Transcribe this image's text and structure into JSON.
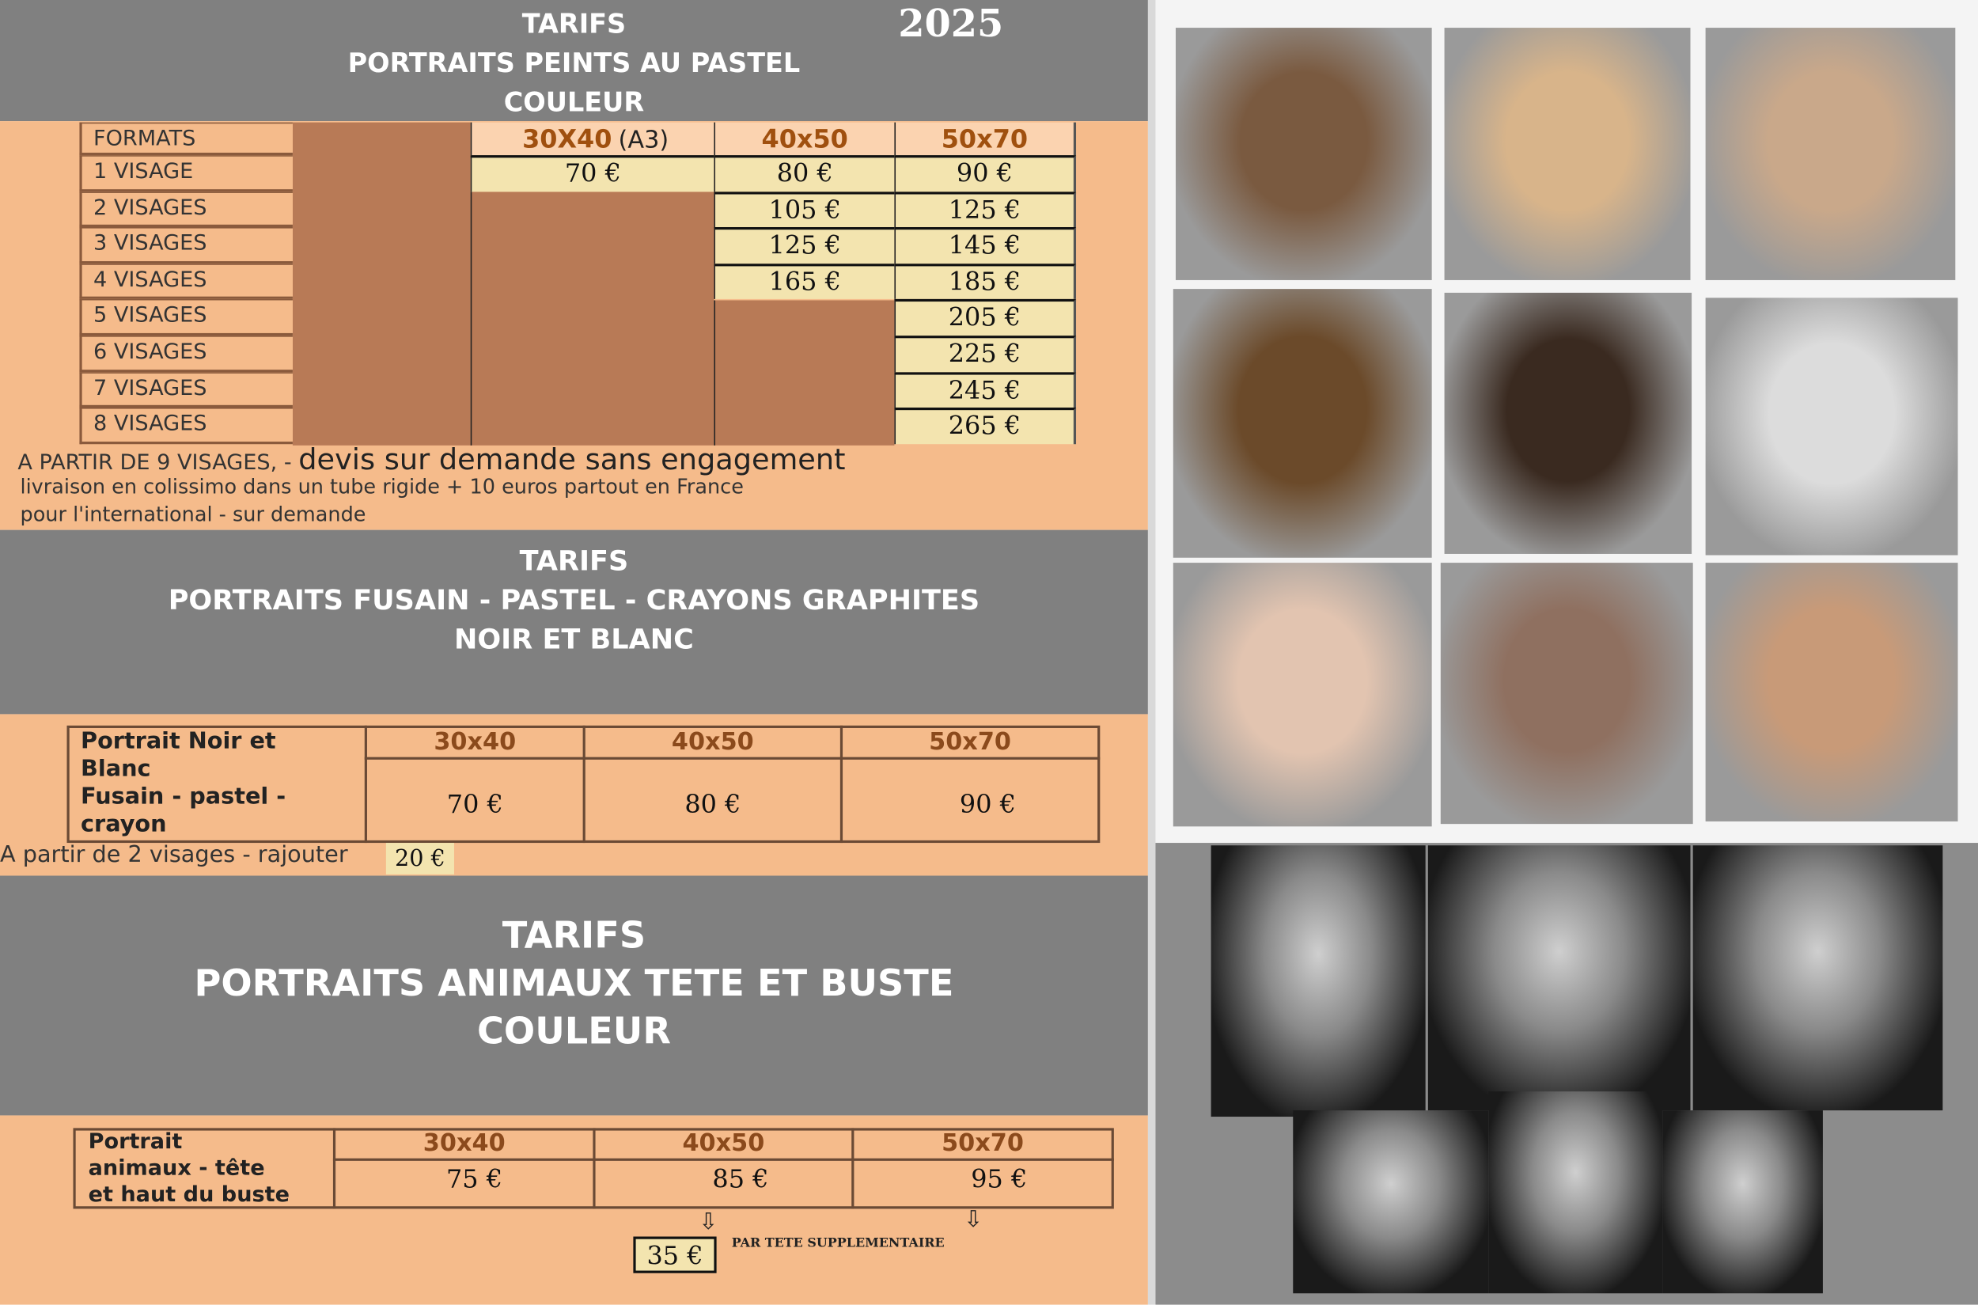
{
  "year": "2025",
  "section1": {
    "title_lines": [
      "TARIFS",
      "PORTRAITS PEINTS AU PASTEL",
      "COULEUR"
    ],
    "formats_label": "FORMATS",
    "columns": [
      {
        "label": "30X40",
        "suffix": "(A3)"
      },
      {
        "label": "40x50",
        "suffix": ""
      },
      {
        "label": "50x70",
        "suffix": ""
      }
    ],
    "rows": [
      {
        "label": "1 VISAGE",
        "prices": [
          "70 €",
          "80 €",
          "90 €"
        ]
      },
      {
        "label": "2 VISAGES",
        "prices": [
          null,
          "105 €",
          "125 €"
        ]
      },
      {
        "label": "3 VISAGES",
        "prices": [
          null,
          "125 €",
          "145 €"
        ]
      },
      {
        "label": "4 VISAGES",
        "prices": [
          null,
          "165 €",
          "185 €"
        ]
      },
      {
        "label": "5 VISAGES",
        "prices": [
          null,
          null,
          "205 €"
        ]
      },
      {
        "label": "6 VISAGES",
        "prices": [
          null,
          null,
          "225 €"
        ]
      },
      {
        "label": "7 VISAGES",
        "prices": [
          null,
          null,
          "245 €"
        ]
      },
      {
        "label": "8 VISAGES",
        "prices": [
          null,
          null,
          "265 €"
        ]
      }
    ],
    "note_prefix": "A PARTIR DE 9 VISAGES, - ",
    "note_main": "devis sur demande sans engagement",
    "delivery": "livraison en colissimo dans un tube rigide + 10 euros partout en France",
    "international": "pour l'international - sur demande"
  },
  "section2": {
    "title_lines": [
      "TARIFS",
      "PORTRAITS FUSAIN - PASTEL - CRAYONS GRAPHITES",
      "NOIR ET BLANC"
    ],
    "row_label_lines": [
      "Portrait Noir et",
      "Blanc",
      "Fusain - pastel -",
      "crayon"
    ],
    "columns": [
      "30x40",
      "40x50",
      "50x70"
    ],
    "prices": [
      "70 €",
      "80 €",
      "90 €"
    ],
    "extra_label": "A partir de 2 visages - rajouter",
    "extra_price": "20 €"
  },
  "section3": {
    "title_lines": [
      "TARIFS",
      "PORTRAITS ANIMAUX TETE ET BUSTE",
      "COULEUR"
    ],
    "row_label_lines": [
      "Portrait",
      "animaux - tête",
      "et haut du buste"
    ],
    "columns": [
      "30x40",
      "40x50",
      "50x70"
    ],
    "prices": [
      "75 €",
      "85 €",
      "95 €"
    ],
    "extra_price": "35 €",
    "extra_label": "PAR TETE SUPPLEMENTAIRE"
  },
  "gallery": {
    "items": [
      "girl-with-cat",
      "blonde-girl",
      "toddler",
      "german-shepherd",
      "rottweiler",
      "cat",
      "elderly-woman",
      "elderly-man",
      "young-woman"
    ],
    "bw_items": [
      "man-with-hat",
      "young-woman-bw",
      "woman-looking-up",
      "dancer",
      "footballer",
      "man-portrait"
    ]
  },
  "colors": {
    "gray": "#808080",
    "peach": "#f5bb8b",
    "brown": "#b87a56",
    "yellow": "#f3e4af",
    "header_text": "#a0500f"
  }
}
